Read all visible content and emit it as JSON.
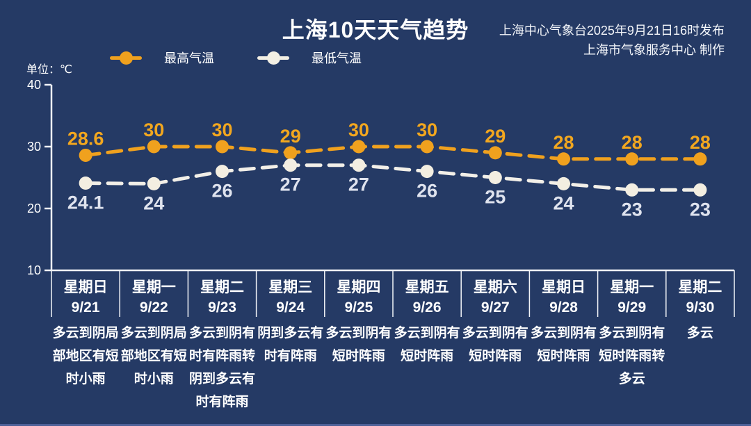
{
  "header": {
    "title": "上海10天天气趋势",
    "publish_line1": "上海中心气象台2025年9月21日16时发布",
    "publish_line2": "上海市气象服务中心 制作"
  },
  "unit_label": "单位：℃",
  "legend": [
    {
      "name": "最高气温",
      "color": "#f0a11e"
    },
    {
      "name": "最低气温",
      "color": "#f3efe4"
    }
  ],
  "colors": {
    "background": "#253a65",
    "high_line": "#f0a11e",
    "high_label": "#f2a71f",
    "low_line": "#f2efe8",
    "low_marker": "#f3eee1",
    "low_label": "#dfe3ee",
    "axis": "#f2f4f8",
    "text": "#ffffff",
    "bottom_edge": "#4d6097"
  },
  "chart_data": {
    "type": "line",
    "title": "上海10天天气趋势",
    "ylabel": "单位：℃",
    "ylim": [
      10,
      40
    ],
    "yticks": [
      40,
      30,
      20,
      10
    ],
    "grid": false,
    "legend_position": "top-left",
    "categories": [
      "星期日",
      "星期一",
      "星期二",
      "星期三",
      "星期四",
      "星期五",
      "星期六",
      "星期日",
      "星期一",
      "星期二"
    ],
    "dates": [
      "9/21",
      "9/22",
      "9/23",
      "9/24",
      "9/25",
      "9/26",
      "9/27",
      "9/28",
      "9/29",
      "9/30"
    ],
    "series": [
      {
        "name": "最高气温",
        "values": [
          28.6,
          30,
          30,
          29,
          30,
          30,
          29,
          28,
          28,
          28
        ],
        "labels": [
          "28.6",
          "30",
          "30",
          "29",
          "30",
          "30",
          "29",
          "28",
          "28",
          "28"
        ]
      },
      {
        "name": "最低气温",
        "values": [
          24.1,
          24,
          26,
          27,
          27,
          26,
          25,
          24,
          23,
          23
        ],
        "labels": [
          "24.1",
          "24",
          "26",
          "27",
          "27",
          "26",
          "25",
          "24",
          "23",
          "23"
        ]
      }
    ],
    "weather": [
      "多云到阴局部地区有短时小雨",
      "多云到阴局部地区有短时小雨",
      "多云到阴有时有阵雨转阴到多云有时有阵雨",
      "阴到多云有时有阵雨",
      "多云到阴有短时阵雨",
      "多云到阴有短时阵雨",
      "多云到阴有短时阵雨",
      "多云到阴有短时阵雨",
      "多云到阴有短时阵雨转多云",
      "多云"
    ]
  }
}
